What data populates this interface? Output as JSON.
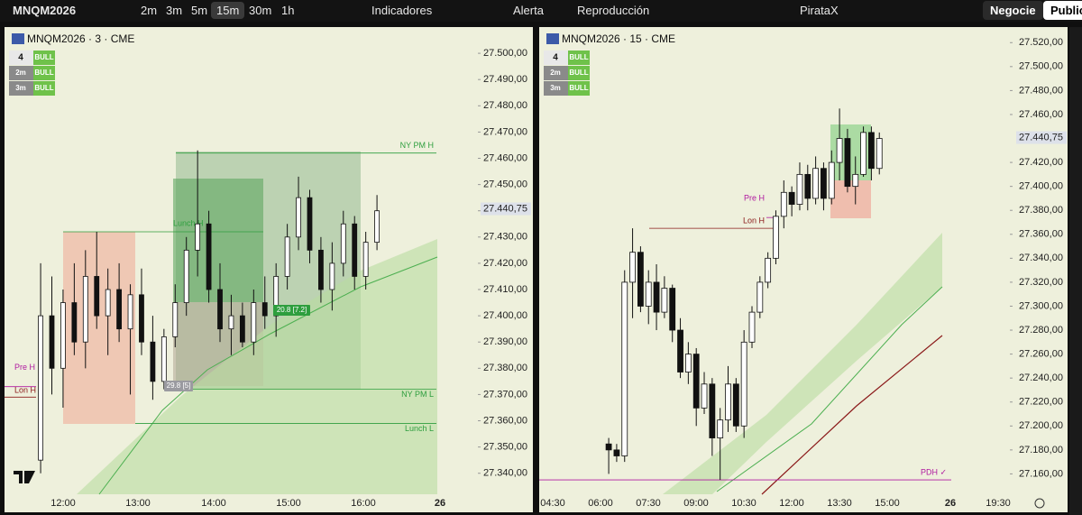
{
  "toolbar": {
    "symbol": "MNQM2026",
    "intervals": [
      "2m",
      "3m",
      "5m",
      "15m",
      "30m",
      "1h"
    ],
    "selected_interval": "15m",
    "indicators": "Indicadores",
    "alert": "Alerta",
    "replay": "Reproducción",
    "layout": "PirataX",
    "trade": "Negocie",
    "publish": "Publicar"
  },
  "panes": [
    {
      "type": "candlestick",
      "header": "MNQM2026 · 3 · CME",
      "trend_table": [
        [
          "4",
          "BULL"
        ],
        [
          "2m",
          "BULL"
        ],
        [
          "3m",
          "BULL"
        ]
      ],
      "xlim": [
        "11:13",
        "17:33"
      ],
      "xticks": [
        "12:00",
        "13:00",
        "14:00",
        "15:00",
        "16:00",
        "26"
      ],
      "ylim": [
        27332,
        27510
      ],
      "yticks": [
        {
          "value": 27500,
          "label": "27.500,00"
        },
        {
          "value": 27490,
          "label": "27.490,00"
        },
        {
          "value": 27480,
          "label": "27.480,00"
        },
        {
          "value": 27470,
          "label": "27.470,00"
        },
        {
          "value": 27460,
          "label": "27.460,00"
        },
        {
          "value": 27450,
          "label": "27.450,00"
        },
        {
          "value": 27440,
          "label": "27.440,00"
        },
        {
          "value": 27430,
          "label": "27.430,00"
        },
        {
          "value": 27420,
          "label": "27.420,00"
        },
        {
          "value": 27410,
          "label": "27.410,00"
        },
        {
          "value": 27400,
          "label": "27.400,00"
        },
        {
          "value": 27390,
          "label": "27.390,00"
        },
        {
          "value": 27380,
          "label": "27.380,00"
        },
        {
          "value": 27370,
          "label": "27.370,00"
        },
        {
          "value": 27360,
          "label": "27.360,00"
        },
        {
          "value": 27350,
          "label": "27.350,00"
        },
        {
          "value": 27340,
          "label": "27.340,00"
        }
      ],
      "last_price": {
        "value": 27440.75,
        "label": "27.440,75"
      },
      "levels": [
        {
          "label": "NY PM H",
          "value": 27462
        },
        {
          "label": "Lunch H",
          "value": 27432
        },
        {
          "label": "NY PM L",
          "value": 27372
        },
        {
          "label": "Lunch L",
          "value": 27359
        },
        {
          "label": "Pre H",
          "value": 27373
        },
        {
          "label": "Lon H",
          "value": 27369
        }
      ],
      "badges": [
        "20.8 [7.2]",
        "29.8 [5]"
      ],
      "candles": [
        {
          "time": "11:42",
          "open": 27345,
          "high": 27420,
          "low": 27340,
          "close": 27400
        },
        {
          "time": "11:51",
          "open": 27400,
          "high": 27415,
          "low": 27370,
          "close": 27380
        },
        {
          "time": "12:00",
          "open": 27380,
          "high": 27410,
          "low": 27365,
          "close": 27405
        },
        {
          "time": "12:09",
          "open": 27405,
          "high": 27420,
          "low": 27385,
          "close": 27390
        },
        {
          "time": "12:18",
          "open": 27390,
          "high": 27425,
          "low": 27380,
          "close": 27415
        },
        {
          "time": "12:27",
          "open": 27415,
          "high": 27432,
          "low": 27395,
          "close": 27400
        },
        {
          "time": "12:36",
          "open": 27400,
          "high": 27418,
          "low": 27385,
          "close": 27410
        },
        {
          "time": "12:45",
          "open": 27410,
          "high": 27420,
          "low": 27390,
          "close": 27395
        },
        {
          "time": "12:54",
          "open": 27395,
          "high": 27412,
          "low": 27370,
          "close": 27408
        },
        {
          "time": "13:03",
          "open": 27408,
          "high": 27418,
          "low": 27385,
          "close": 27390
        },
        {
          "time": "13:12",
          "open": 27390,
          "high": 27400,
          "low": 27368,
          "close": 27375
        },
        {
          "time": "13:21",
          "open": 27375,
          "high": 27395,
          "low": 27372,
          "close": 27392
        },
        {
          "time": "13:30",
          "open": 27392,
          "high": 27412,
          "low": 27388,
          "close": 27405
        },
        {
          "time": "13:39",
          "open": 27405,
          "high": 27430,
          "low": 27400,
          "close": 27425
        },
        {
          "time": "13:48",
          "open": 27425,
          "high": 27463,
          "low": 27415,
          "close": 27435
        },
        {
          "time": "13:57",
          "open": 27435,
          "high": 27440,
          "low": 27405,
          "close": 27410
        },
        {
          "time": "14:06",
          "open": 27410,
          "high": 27420,
          "low": 27390,
          "close": 27395
        },
        {
          "time": "14:15",
          "open": 27395,
          "high": 27408,
          "low": 27385,
          "close": 27400
        },
        {
          "time": "14:24",
          "open": 27400,
          "high": 27405,
          "low": 27388,
          "close": 27390
        },
        {
          "time": "14:33",
          "open": 27390,
          "high": 27410,
          "low": 27385,
          "close": 27405
        },
        {
          "time": "14:42",
          "open": 27405,
          "high": 27415,
          "low": 27395,
          "close": 27400
        },
        {
          "time": "14:51",
          "open": 27400,
          "high": 27420,
          "low": 27392,
          "close": 27415
        },
        {
          "time": "15:00",
          "open": 27415,
          "high": 27435,
          "low": 27410,
          "close": 27430
        },
        {
          "time": "15:09",
          "open": 27430,
          "high": 27453,
          "low": 27425,
          "close": 27445
        },
        {
          "time": "15:18",
          "open": 27445,
          "high": 27448,
          "low": 27420,
          "close": 27425
        },
        {
          "time": "15:27",
          "open": 27425,
          "high": 27430,
          "low": 27405,
          "close": 27410
        },
        {
          "time": "15:36",
          "open": 27410,
          "high": 27428,
          "low": 27402,
          "close": 27420
        },
        {
          "time": "15:45",
          "open": 27420,
          "high": 27440,
          "low": 27415,
          "close": 27435
        },
        {
          "time": "15:54",
          "open": 27435,
          "high": 27438,
          "low": 27410,
          "close": 27415
        },
        {
          "time": "16:03",
          "open": 27415,
          "high": 27432,
          "low": 27410,
          "close": 27428
        },
        {
          "time": "16:12",
          "open": 27428,
          "high": 27446,
          "low": 27425,
          "close": 27440
        }
      ]
    },
    {
      "type": "candlestick",
      "header": "MNQM2026 · 15 · CME",
      "trend_table": [
        [
          "4",
          "BULL"
        ],
        [
          "2m",
          "BULL"
        ],
        [
          "3m",
          "BULL"
        ]
      ],
      "xlim": [
        "04:04",
        "18:51"
      ],
      "xticks": [
        "04:30",
        "06:00",
        "07:30",
        "09:00",
        "10:30",
        "12:00",
        "13:30",
        "15:00",
        "26",
        "19:30"
      ],
      "ylim": [
        27143,
        27533
      ],
      "yticks": [
        {
          "value": 27520,
          "label": "27.520,00"
        },
        {
          "value": 27500,
          "label": "27.500,00"
        },
        {
          "value": 27480,
          "label": "27.480,00"
        },
        {
          "value": 27460,
          "label": "27.460,00"
        },
        {
          "value": 27420,
          "label": "27.420,00"
        },
        {
          "value": 27400,
          "label": "27.400,00"
        },
        {
          "value": 27380,
          "label": "27.380,00"
        },
        {
          "value": 27360,
          "label": "27.360,00"
        },
        {
          "value": 27340,
          "label": "27.340,00"
        },
        {
          "value": 27320,
          "label": "27.320,00"
        },
        {
          "value": 27300,
          "label": "27.300,00"
        },
        {
          "value": 27280,
          "label": "27.280,00"
        },
        {
          "value": 27260,
          "label": "27.260,00"
        },
        {
          "value": 27240,
          "label": "27.240,00"
        },
        {
          "value": 27220,
          "label": "27.220,00"
        },
        {
          "value": 27200,
          "label": "27.200,00"
        },
        {
          "value": 27180,
          "label": "27.180,00"
        },
        {
          "value": 27160,
          "label": "27.160,00"
        }
      ],
      "last_price": {
        "value": 27440.75,
        "label": "27.440,75"
      },
      "levels": [
        {
          "label": "Pre H",
          "value": 27374
        },
        {
          "label": "Lon H",
          "value": 27365
        },
        {
          "label": "PDH ✓",
          "value": 27155
        }
      ],
      "candles": [
        {
          "time": "06:15",
          "open": 27185,
          "high": 27190,
          "low": 27160,
          "close": 27180
        },
        {
          "time": "06:30",
          "open": 27180,
          "high": 27185,
          "low": 27170,
          "close": 27175
        },
        {
          "time": "06:45",
          "open": 27175,
          "high": 27330,
          "low": 27170,
          "close": 27320
        },
        {
          "time": "07:00",
          "open": 27320,
          "high": 27365,
          "low": 27290,
          "close": 27345
        },
        {
          "time": "07:15",
          "open": 27345,
          "high": 27350,
          "low": 27295,
          "close": 27300
        },
        {
          "time": "07:30",
          "open": 27300,
          "high": 27330,
          "low": 27285,
          "close": 27320
        },
        {
          "time": "07:45",
          "open": 27320,
          "high": 27335,
          "low": 27280,
          "close": 27295
        },
        {
          "time": "08:00",
          "open": 27295,
          "high": 27325,
          "low": 27290,
          "close": 27315
        },
        {
          "time": "08:15",
          "open": 27315,
          "high": 27318,
          "low": 27270,
          "close": 27280
        },
        {
          "time": "08:30",
          "open": 27280,
          "high": 27290,
          "low": 27240,
          "close": 27245
        },
        {
          "time": "08:45",
          "open": 27245,
          "high": 27270,
          "low": 27235,
          "close": 27260
        },
        {
          "time": "09:00",
          "open": 27260,
          "high": 27265,
          "low": 27200,
          "close": 27215
        },
        {
          "time": "09:15",
          "open": 27215,
          "high": 27245,
          "low": 27210,
          "close": 27235
        },
        {
          "time": "09:30",
          "open": 27235,
          "high": 27240,
          "low": 27175,
          "close": 27190
        },
        {
          "time": "09:45",
          "open": 27190,
          "high": 27215,
          "low": 27155,
          "close": 27205
        },
        {
          "time": "10:00",
          "open": 27205,
          "high": 27250,
          "low": 27195,
          "close": 27235
        },
        {
          "time": "10:15",
          "open": 27235,
          "high": 27240,
          "low": 27195,
          "close": 27200
        },
        {
          "time": "10:30",
          "open": 27200,
          "high": 27280,
          "low": 27190,
          "close": 27270
        },
        {
          "time": "10:45",
          "open": 27270,
          "high": 27300,
          "low": 27265,
          "close": 27295
        },
        {
          "time": "11:00",
          "open": 27295,
          "high": 27325,
          "low": 27290,
          "close": 27320
        },
        {
          "time": "11:15",
          "open": 27320,
          "high": 27345,
          "low": 27315,
          "close": 27340
        },
        {
          "time": "11:30",
          "open": 27340,
          "high": 27380,
          "low": 27335,
          "close": 27375
        },
        {
          "time": "11:45",
          "open": 27375,
          "high": 27405,
          "low": 27365,
          "close": 27395
        },
        {
          "time": "12:00",
          "open": 27395,
          "high": 27400,
          "low": 27375,
          "close": 27385
        },
        {
          "time": "12:15",
          "open": 27385,
          "high": 27420,
          "low": 27380,
          "close": 27410
        },
        {
          "time": "12:30",
          "open": 27410,
          "high": 27418,
          "low": 27380,
          "close": 27390
        },
        {
          "time": "12:45",
          "open": 27390,
          "high": 27425,
          "low": 27385,
          "close": 27415
        },
        {
          "time": "13:00",
          "open": 27415,
          "high": 27420,
          "low": 27380,
          "close": 27390
        },
        {
          "time": "13:15",
          "open": 27390,
          "high": 27430,
          "low": 27385,
          "close": 27420
        },
        {
          "time": "13:30",
          "open": 27420,
          "high": 27465,
          "low": 27405,
          "close": 27440
        },
        {
          "time": "13:45",
          "open": 27440,
          "high": 27448,
          "low": 27395,
          "close": 27400
        },
        {
          "time": "14:00",
          "open": 27400,
          "high": 27425,
          "low": 27385,
          "close": 27410
        },
        {
          "time": "14:15",
          "open": 27410,
          "high": 27450,
          "low": 27408,
          "close": 27445
        },
        {
          "time": "14:30",
          "open": 27445,
          "high": 27450,
          "low": 27405,
          "close": 27415
        },
        {
          "time": "14:45",
          "open": 27415,
          "high": 27445,
          "low": 27410,
          "close": 27440
        }
      ]
    }
  ]
}
